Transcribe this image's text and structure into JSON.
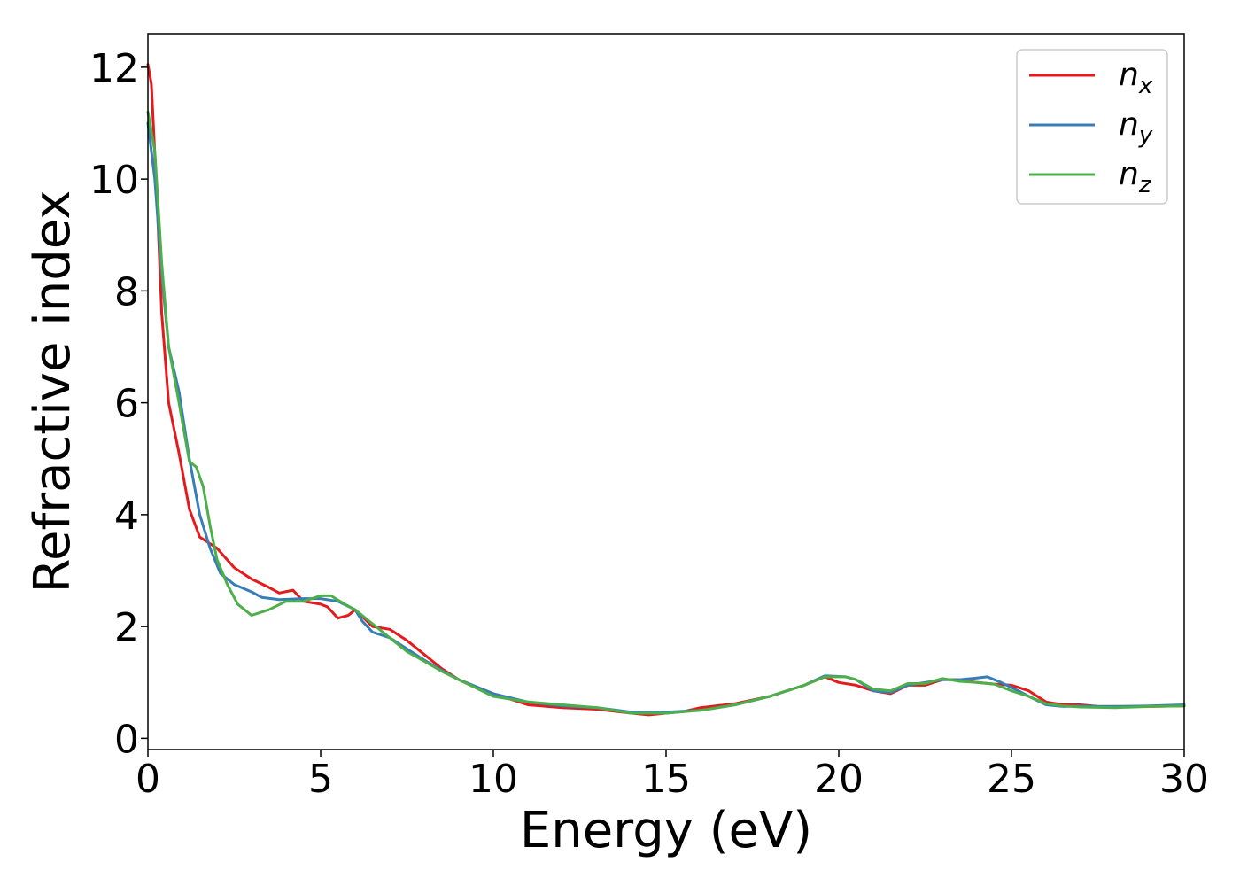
{
  "chart_data": {
    "type": "line",
    "xlabel": "Energy (eV)",
    "ylabel": "Refractive index",
    "xlim": [
      0,
      30
    ],
    "ylim": [
      -0.2,
      12.6
    ],
    "xticks": [
      0,
      5,
      10,
      15,
      20,
      25,
      30
    ],
    "yticks": [
      0,
      2,
      4,
      6,
      8,
      10,
      12
    ],
    "grid": false,
    "legend_position": "top-right",
    "series": [
      {
        "name": "n_x",
        "label_main": "n",
        "label_sub": "x",
        "color": "#e41a1c",
        "points": [
          [
            0,
            12.05
          ],
          [
            0.1,
            11.7
          ],
          [
            0.25,
            9.8
          ],
          [
            0.4,
            7.6
          ],
          [
            0.6,
            6.0
          ],
          [
            0.9,
            5.1
          ],
          [
            1.2,
            4.1
          ],
          [
            1.5,
            3.6
          ],
          [
            2.0,
            3.4
          ],
          [
            2.5,
            3.05
          ],
          [
            3.0,
            2.85
          ],
          [
            3.5,
            2.7
          ],
          [
            3.8,
            2.6
          ],
          [
            4.2,
            2.65
          ],
          [
            4.5,
            2.45
          ],
          [
            5.0,
            2.4
          ],
          [
            5.2,
            2.35
          ],
          [
            5.5,
            2.15
          ],
          [
            5.8,
            2.2
          ],
          [
            6.0,
            2.3
          ],
          [
            6.5,
            2.0
          ],
          [
            7.0,
            1.95
          ],
          [
            7.5,
            1.75
          ],
          [
            8.0,
            1.5
          ],
          [
            8.5,
            1.25
          ],
          [
            9.0,
            1.05
          ],
          [
            10.0,
            0.8
          ],
          [
            11.0,
            0.6
          ],
          [
            12.0,
            0.55
          ],
          [
            13.0,
            0.52
          ],
          [
            14.0,
            0.45
          ],
          [
            14.5,
            0.42
          ],
          [
            15.0,
            0.45
          ],
          [
            15.5,
            0.48
          ],
          [
            16.0,
            0.55
          ],
          [
            17.0,
            0.62
          ],
          [
            18.0,
            0.75
          ],
          [
            19.0,
            0.95
          ],
          [
            19.6,
            1.1
          ],
          [
            20.0,
            1.0
          ],
          [
            20.5,
            0.95
          ],
          [
            21.0,
            0.85
          ],
          [
            21.5,
            0.8
          ],
          [
            22.0,
            0.95
          ],
          [
            22.5,
            0.95
          ],
          [
            23.0,
            1.05
          ],
          [
            23.5,
            1.05
          ],
          [
            24.0,
            1.0
          ],
          [
            24.5,
            0.97
          ],
          [
            25.0,
            0.95
          ],
          [
            25.5,
            0.85
          ],
          [
            26.0,
            0.65
          ],
          [
            26.5,
            0.6
          ],
          [
            27.0,
            0.6
          ],
          [
            27.5,
            0.57
          ],
          [
            28.0,
            0.57
          ],
          [
            29.0,
            0.57
          ],
          [
            30.0,
            0.58
          ]
        ]
      },
      {
        "name": "n_y",
        "label_main": "n",
        "label_sub": "y",
        "color": "#377eb8",
        "points": [
          [
            0,
            11.0
          ],
          [
            0.2,
            10.0
          ],
          [
            0.4,
            8.3
          ],
          [
            0.6,
            7.0
          ],
          [
            0.9,
            6.2
          ],
          [
            1.2,
            5.0
          ],
          [
            1.5,
            4.0
          ],
          [
            1.8,
            3.4
          ],
          [
            2.1,
            2.95
          ],
          [
            2.5,
            2.75
          ],
          [
            3.0,
            2.62
          ],
          [
            3.3,
            2.52
          ],
          [
            3.8,
            2.48
          ],
          [
            4.5,
            2.5
          ],
          [
            5.0,
            2.5
          ],
          [
            5.5,
            2.45
          ],
          [
            6.0,
            2.3
          ],
          [
            6.2,
            2.1
          ],
          [
            6.5,
            1.9
          ],
          [
            7.0,
            1.8
          ],
          [
            7.5,
            1.6
          ],
          [
            8.0,
            1.4
          ],
          [
            8.5,
            1.22
          ],
          [
            9.0,
            1.05
          ],
          [
            10.0,
            0.8
          ],
          [
            11.0,
            0.65
          ],
          [
            12.0,
            0.58
          ],
          [
            13.0,
            0.55
          ],
          [
            14.0,
            0.47
          ],
          [
            15.0,
            0.47
          ],
          [
            16.0,
            0.5
          ],
          [
            17.0,
            0.6
          ],
          [
            18.0,
            0.75
          ],
          [
            19.0,
            0.95
          ],
          [
            19.6,
            1.12
          ],
          [
            20.2,
            1.1
          ],
          [
            20.5,
            1.05
          ],
          [
            21.0,
            0.85
          ],
          [
            21.5,
            0.82
          ],
          [
            22.0,
            0.95
          ],
          [
            22.5,
            1.0
          ],
          [
            23.0,
            1.05
          ],
          [
            23.5,
            1.05
          ],
          [
            24.0,
            1.08
          ],
          [
            24.3,
            1.1
          ],
          [
            24.7,
            1.0
          ],
          [
            25.2,
            0.85
          ],
          [
            25.6,
            0.72
          ],
          [
            26.0,
            0.6
          ],
          [
            26.5,
            0.57
          ],
          [
            27.0,
            0.58
          ],
          [
            27.5,
            0.57
          ],
          [
            28.0,
            0.57
          ],
          [
            29.0,
            0.58
          ],
          [
            30.0,
            0.6
          ]
        ]
      },
      {
        "name": "n_z",
        "label_main": "n",
        "label_sub": "z",
        "color": "#4daf4a",
        "points": [
          [
            0,
            11.2
          ],
          [
            0.2,
            10.5
          ],
          [
            0.4,
            8.5
          ],
          [
            0.6,
            7.0
          ],
          [
            0.9,
            6.0
          ],
          [
            1.2,
            4.95
          ],
          [
            1.4,
            4.85
          ],
          [
            1.6,
            4.5
          ],
          [
            1.8,
            3.8
          ],
          [
            2.0,
            3.2
          ],
          [
            2.3,
            2.75
          ],
          [
            2.6,
            2.4
          ],
          [
            3.0,
            2.2
          ],
          [
            3.5,
            2.3
          ],
          [
            4.0,
            2.45
          ],
          [
            4.5,
            2.45
          ],
          [
            5.0,
            2.55
          ],
          [
            5.3,
            2.55
          ],
          [
            5.7,
            2.4
          ],
          [
            6.0,
            2.3
          ],
          [
            6.5,
            2.05
          ],
          [
            7.0,
            1.8
          ],
          [
            7.5,
            1.55
          ],
          [
            8.0,
            1.38
          ],
          [
            8.5,
            1.2
          ],
          [
            9.0,
            1.05
          ],
          [
            10.0,
            0.75
          ],
          [
            11.0,
            0.65
          ],
          [
            12.0,
            0.6
          ],
          [
            13.0,
            0.55
          ],
          [
            14.0,
            0.45
          ],
          [
            15.0,
            0.45
          ],
          [
            16.0,
            0.5
          ],
          [
            17.0,
            0.6
          ],
          [
            18.0,
            0.75
          ],
          [
            19.0,
            0.95
          ],
          [
            19.6,
            1.1
          ],
          [
            20.2,
            1.1
          ],
          [
            20.5,
            1.05
          ],
          [
            21.0,
            0.88
          ],
          [
            21.5,
            0.85
          ],
          [
            22.0,
            0.98
          ],
          [
            22.5,
            0.98
          ],
          [
            23.0,
            1.07
          ],
          [
            23.5,
            1.02
          ],
          [
            24.0,
            1.0
          ],
          [
            24.5,
            0.97
          ],
          [
            25.0,
            0.85
          ],
          [
            25.5,
            0.75
          ],
          [
            26.0,
            0.62
          ],
          [
            26.5,
            0.58
          ],
          [
            27.0,
            0.56
          ],
          [
            28.0,
            0.55
          ],
          [
            29.0,
            0.57
          ],
          [
            30.0,
            0.58
          ]
        ]
      }
    ]
  }
}
